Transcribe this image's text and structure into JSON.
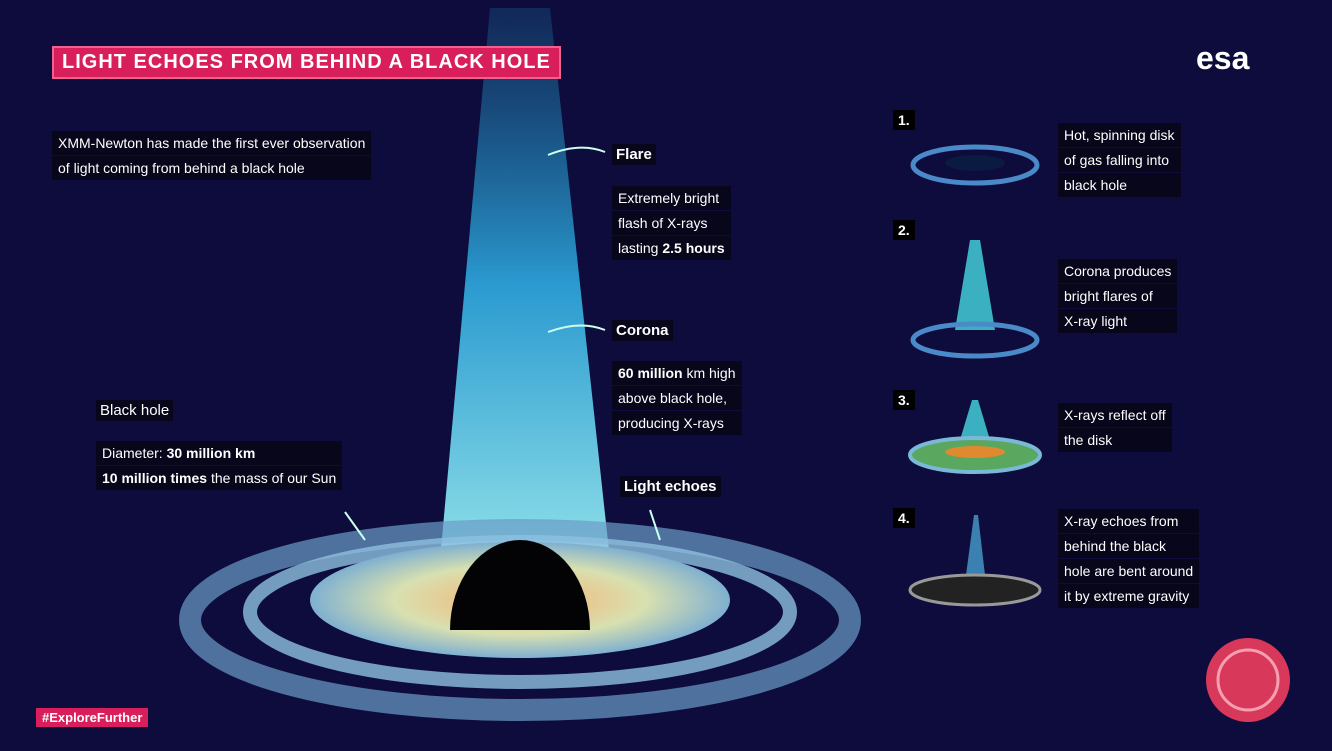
{
  "header": {
    "title": "LIGHT ECHOES FROM BEHIND A BLACK HOLE",
    "logo": "esa"
  },
  "intro": [
    "XMM-Newton has made the first ever observation",
    "of light coming from behind a black hole"
  ],
  "flare": {
    "label": "Flare",
    "lines": [
      "Extremely bright",
      "flash of X-rays"
    ],
    "lasting": "lasting",
    "duration": "2.5 hours"
  },
  "corona": {
    "label": "Corona",
    "height": "60 million",
    "unit": "km high",
    "lines": [
      "above black hole,",
      "producing X-rays"
    ]
  },
  "black_hole": {
    "label": "Black hole",
    "diameter_label": "Diameter:",
    "diameter": "30 million km",
    "mass": "10 million times",
    "mass_text": "the mass of our Sun"
  },
  "light_echoes": "Light echoes",
  "steps": [
    {
      "number": "1.",
      "lines": [
        "Hot, spinning disk",
        "of gas falling into",
        "black hole"
      ]
    },
    {
      "number": "2.",
      "lines": [
        "Corona produces",
        "bright flares of",
        "X-ray light"
      ]
    },
    {
      "number": "3.",
      "lines": [
        "X-rays reflect off",
        "the disk"
      ]
    },
    {
      "number": "4.",
      "lines": [
        "X-ray echoes from",
        "behind the black",
        "hole are bent around",
        "it by extreme gravity"
      ]
    }
  ],
  "hashtag": "#ExploreFurther"
}
